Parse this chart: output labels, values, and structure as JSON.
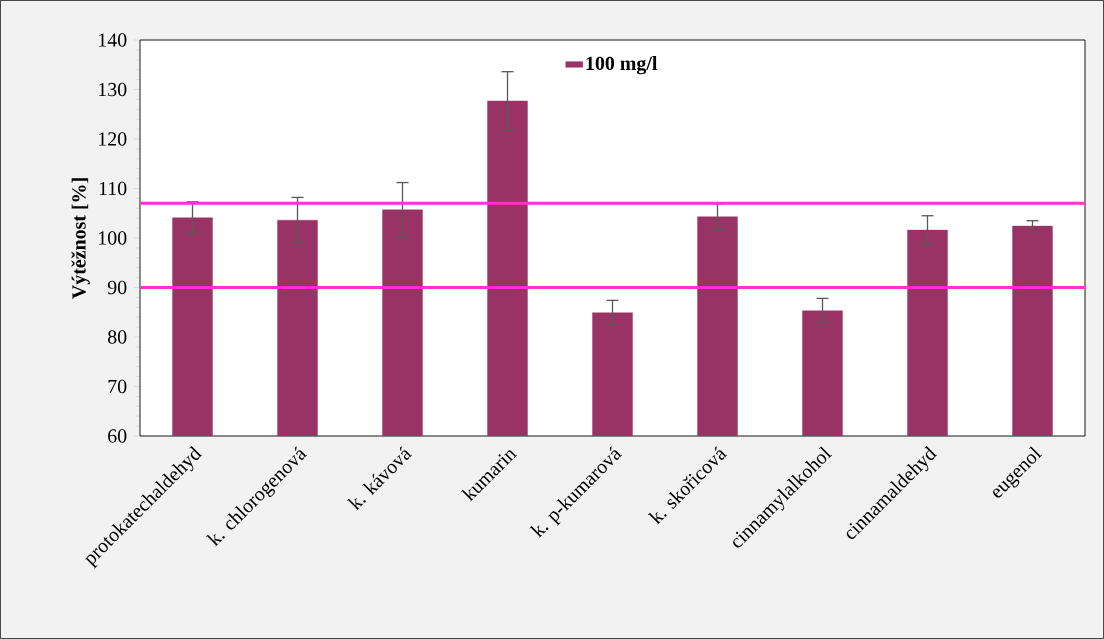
{
  "chart_data": {
    "type": "bar",
    "ylabel": "Výtěžnost [%]",
    "categories": [
      "protokatechaldehyd",
      "k. chlorogenová",
      "k. kávová",
      "kumarin",
      "k. p-kumarová",
      "k. skořicová",
      "cinnamylalkohol",
      "cinnamaldehyd",
      "eugenol"
    ],
    "series": [
      {
        "name": "**100 mg/l**",
        "color": "#993366",
        "values": [
          104.1,
          103.6,
          105.7,
          127.7,
          84.9,
          104.3,
          85.3,
          101.6,
          102.4
        ],
        "errors": [
          3.2,
          4.6,
          5.5,
          5.9,
          2.5,
          2.6,
          2.5,
          2.9,
          1.1
        ]
      }
    ],
    "ylim": [
      60,
      140
    ],
    "yticks": [
      60,
      70,
      80,
      90,
      100,
      110,
      120,
      130,
      140
    ],
    "ref_lines": [
      {
        "axis": "y",
        "value": 107,
        "color": "#ff33cc"
      },
      {
        "axis": "y",
        "value": 90,
        "color": "#ff33cc"
      }
    ],
    "legend": "top",
    "grid": false
  }
}
